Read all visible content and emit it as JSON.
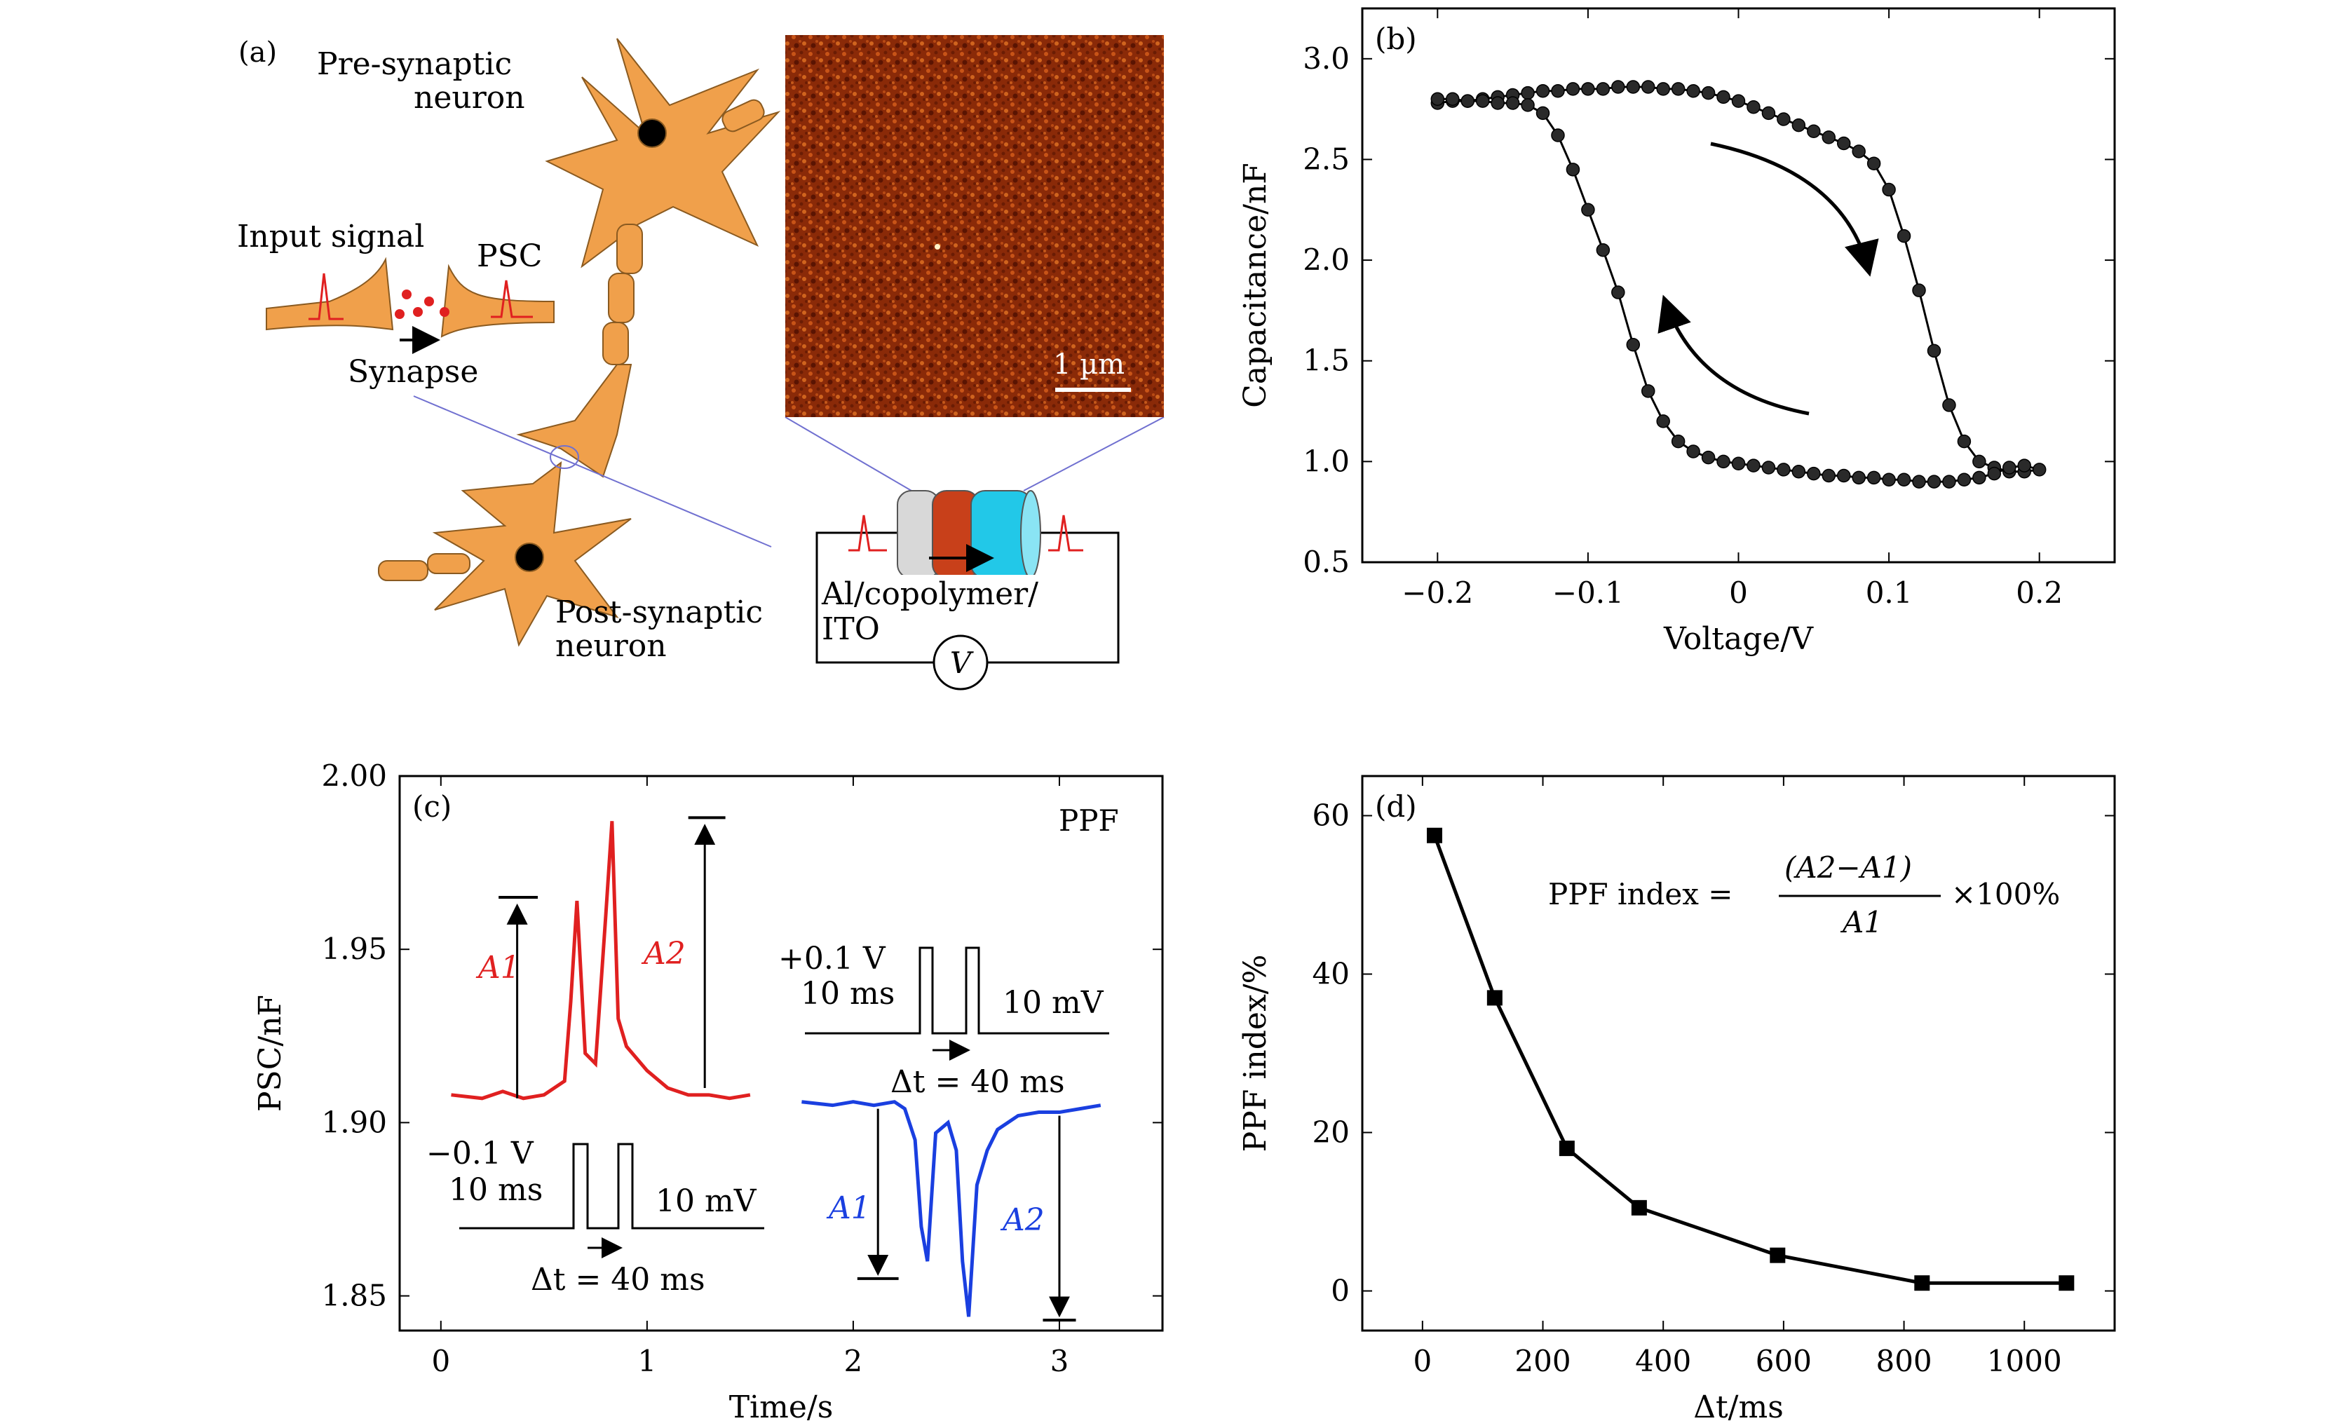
{
  "panels": {
    "a": {
      "label": "(a)",
      "pre_neuron_line1": "Pre-synaptic",
      "pre_neuron_line2": "neuron",
      "post_neuron_line1": "Post-synaptic",
      "post_neuron_line2": "neuron",
      "input_signal": "Input signal",
      "psc": "PSC",
      "synapse": "Synapse",
      "scale_bar": "1 µm",
      "device_line1": "Al/copolymer/",
      "device_line2": "ITO",
      "meter": "V",
      "colors": {
        "neuron": "#f0a04b",
        "spike": "#e02020",
        "al": "#d8d8d8",
        "copolymer": "#c8401a",
        "ito": "#22c8e8",
        "afm": "#8a2a08"
      }
    }
  },
  "chart_data": [
    {
      "panel": "(b)",
      "type": "scatter",
      "xlabel": "Voltage/V",
      "ylabel": "Capacitance/nF",
      "xlim": [
        -0.25,
        0.25
      ],
      "ylim": [
        0.5,
        3.25
      ],
      "xticks": [
        "−0.2",
        "−0.1",
        "0",
        "0.1",
        "0.2"
      ],
      "yticks": [
        "0.5",
        "1.0",
        "1.5",
        "2.0",
        "2.5",
        "3.0"
      ],
      "series": [
        {
          "x": [
            -0.2,
            -0.19,
            -0.18,
            -0.17,
            -0.16,
            -0.15,
            -0.14,
            -0.13,
            -0.12,
            -0.11,
            -0.1,
            -0.09,
            -0.08,
            -0.07,
            -0.06,
            -0.05,
            -0.04,
            -0.03,
            -0.02,
            -0.01,
            0,
            0.01,
            0.02,
            0.03,
            0.04,
            0.05,
            0.06,
            0.07,
            0.08,
            0.09,
            0.1,
            0.11,
            0.12,
            0.13,
            0.14,
            0.15,
            0.16,
            0.17,
            0.18,
            0.19,
            0.2,
            0.19,
            0.18,
            0.17,
            0.16,
            0.15,
            0.14,
            0.13,
            0.12,
            0.11,
            0.1,
            0.09,
            0.08,
            0.07,
            0.06,
            0.05,
            0.04,
            0.03,
            0.02,
            0.01,
            0,
            -0.01,
            -0.02,
            -0.03,
            -0.04,
            -0.05,
            -0.06,
            -0.07,
            -0.08,
            -0.09,
            -0.1,
            -0.11,
            -0.12,
            -0.13,
            -0.14,
            -0.15,
            -0.16,
            -0.17,
            -0.18,
            -0.19,
            -0.2
          ],
          "y": [
            2.78,
            2.79,
            2.79,
            2.8,
            2.81,
            2.82,
            2.83,
            2.84,
            2.84,
            2.85,
            2.85,
            2.85,
            2.86,
            2.86,
            2.86,
            2.85,
            2.85,
            2.84,
            2.83,
            2.81,
            2.79,
            2.76,
            2.73,
            2.7,
            2.67,
            2.64,
            2.61,
            2.58,
            2.54,
            2.48,
            2.35,
            2.12,
            1.85,
            1.55,
            1.28,
            1.1,
            1.0,
            0.97,
            0.95,
            0.95,
            0.96,
            0.98,
            0.97,
            0.94,
            0.92,
            0.91,
            0.9,
            0.9,
            0.9,
            0.91,
            0.91,
            0.92,
            0.92,
            0.93,
            0.93,
            0.94,
            0.95,
            0.96,
            0.97,
            0.98,
            0.99,
            1.0,
            1.02,
            1.05,
            1.1,
            1.2,
            1.35,
            1.58,
            1.84,
            2.05,
            2.25,
            2.45,
            2.62,
            2.73,
            2.77,
            2.78,
            2.78,
            2.79,
            2.79,
            2.8,
            2.8
          ]
        }
      ]
    },
    {
      "panel": "(c)",
      "type": "line",
      "xlabel": "Time/s",
      "ylabel": "PSC/nF",
      "xlim": [
        -0.2,
        3.5
      ],
      "ylim": [
        1.84,
        2.0
      ],
      "xticks": [
        "0",
        "1",
        "2",
        "3"
      ],
      "yticks": [
        "1.85",
        "1.90",
        "1.95",
        "2.00"
      ],
      "annotations": [
        "PPF",
        "A1",
        "A2",
        "−0.1 V",
        "10 ms",
        "10 mV",
        "Δt = 40 ms",
        "+0.1 V",
        "10 ms",
        "10 mV",
        "Δt = 40 ms",
        "A1",
        "A2"
      ],
      "series": [
        {
          "color": "#e02020",
          "x": [
            0.05,
            0.2,
            0.3,
            0.4,
            0.5,
            0.55,
            0.6,
            0.63,
            0.66,
            0.7,
            0.75,
            0.8,
            0.83,
            0.86,
            0.9,
            1.0,
            1.1,
            1.2,
            1.3,
            1.4,
            1.5
          ],
          "y": [
            1.908,
            1.907,
            1.909,
            1.907,
            1.908,
            1.91,
            1.912,
            1.935,
            1.964,
            1.92,
            1.917,
            1.96,
            1.987,
            1.93,
            1.922,
            1.915,
            1.91,
            1.908,
            1.908,
            1.907,
            1.908
          ]
        },
        {
          "color": "#1a3fe0",
          "x": [
            1.75,
            1.9,
            2.0,
            2.1,
            2.2,
            2.25,
            2.3,
            2.33,
            2.36,
            2.4,
            2.46,
            2.5,
            2.53,
            2.56,
            2.6,
            2.65,
            2.7,
            2.8,
            2.9,
            3.0,
            3.1,
            3.2
          ],
          "y": [
            1.906,
            1.905,
            1.906,
            1.905,
            1.906,
            1.904,
            1.895,
            1.87,
            1.86,
            1.897,
            1.9,
            1.892,
            1.86,
            1.844,
            1.882,
            1.892,
            1.898,
            1.902,
            1.903,
            1.903,
            1.904,
            1.905
          ]
        }
      ]
    },
    {
      "panel": "(d)",
      "type": "line",
      "xlabel": "Δt/ms",
      "ylabel": "PPF index/%",
      "xlim": [
        -100,
        1150
      ],
      "ylim": [
        -5,
        65
      ],
      "xticks": [
        "0",
        "200",
        "400",
        "600",
        "800",
        "1000"
      ],
      "yticks": [
        "0",
        "20",
        "40",
        "60"
      ],
      "formula": {
        "lhs": "PPF index =",
        "numerator": "(A2−A1)",
        "denominator": "A1",
        "rhs": "×100%"
      },
      "x": [
        20,
        120,
        240,
        360,
        590,
        830,
        1070
      ],
      "y": [
        57.5,
        37,
        18,
        10.5,
        4.5,
        1,
        1
      ]
    }
  ]
}
